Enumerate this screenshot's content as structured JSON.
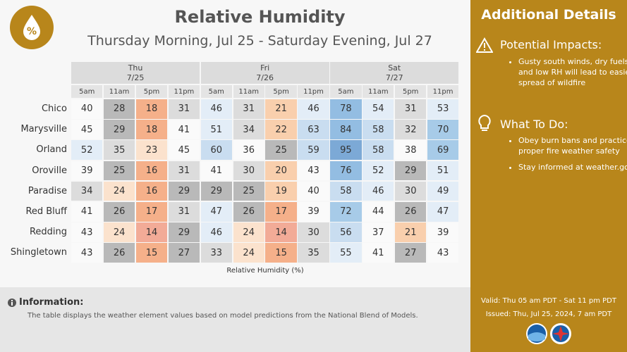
{
  "header": {
    "title": "Relative Humidity",
    "subtitle": "Thursday Morning, Jul 25 - Saturday Evening, Jul 27"
  },
  "table": {
    "days": [
      {
        "day": "Thu",
        "date": "7/25"
      },
      {
        "day": "Fri",
        "date": "7/26"
      },
      {
        "day": "Sat",
        "date": "7/27"
      }
    ],
    "times": [
      "5am",
      "11am",
      "5pm",
      "11pm",
      "5am",
      "11am",
      "5pm",
      "11pm",
      "5am",
      "11am",
      "5pm",
      "11pm"
    ],
    "rows": [
      {
        "station": "Chico",
        "values": [
          40,
          28,
          18,
          31,
          46,
          31,
          21,
          46,
          78,
          54,
          31,
          53
        ]
      },
      {
        "station": "Marysville",
        "values": [
          45,
          29,
          18,
          41,
          51,
          34,
          22,
          63,
          84,
          58,
          32,
          70
        ]
      },
      {
        "station": "Orland",
        "values": [
          52,
          35,
          23,
          45,
          60,
          36,
          25,
          59,
          95,
          58,
          38,
          69
        ]
      },
      {
        "station": "Oroville",
        "values": [
          39,
          25,
          16,
          31,
          41,
          30,
          20,
          43,
          76,
          52,
          29,
          51
        ]
      },
      {
        "station": "Paradise",
        "values": [
          34,
          24,
          16,
          29,
          29,
          25,
          19,
          40,
          58,
          46,
          30,
          49
        ]
      },
      {
        "station": "Red Bluff",
        "values": [
          41,
          26,
          17,
          31,
          47,
          26,
          17,
          39,
          72,
          44,
          26,
          47
        ]
      },
      {
        "station": "Redding",
        "values": [
          43,
          24,
          14,
          29,
          46,
          24,
          14,
          30,
          56,
          37,
          21,
          39
        ]
      },
      {
        "station": "Shingletown",
        "values": [
          43,
          26,
          15,
          27,
          33,
          24,
          15,
          35,
          55,
          41,
          27,
          43
        ]
      }
    ],
    "caption": "Relative Humidity (%)"
  },
  "info": {
    "title": "Information:",
    "text": "The table displays the weather element values based on model predictions from the National Blend of Models."
  },
  "sidebar": {
    "title": "Additional Details",
    "impacts": {
      "title": "Potential Impacts:",
      "items": [
        "Gusty south winds, dry fuels, and low RH will lead to easier spread of wildfire"
      ]
    },
    "todo": {
      "title": "What To Do:",
      "items": [
        "Obey burn bans and practice proper fire weather safety",
        "Stay informed at weather.gov"
      ]
    },
    "valid": "Valid: Thu 05 am PDT - Sat 11 pm PDT",
    "issued": "Issued: Thu, Jul 25, 2024, 7 am PDT"
  }
}
